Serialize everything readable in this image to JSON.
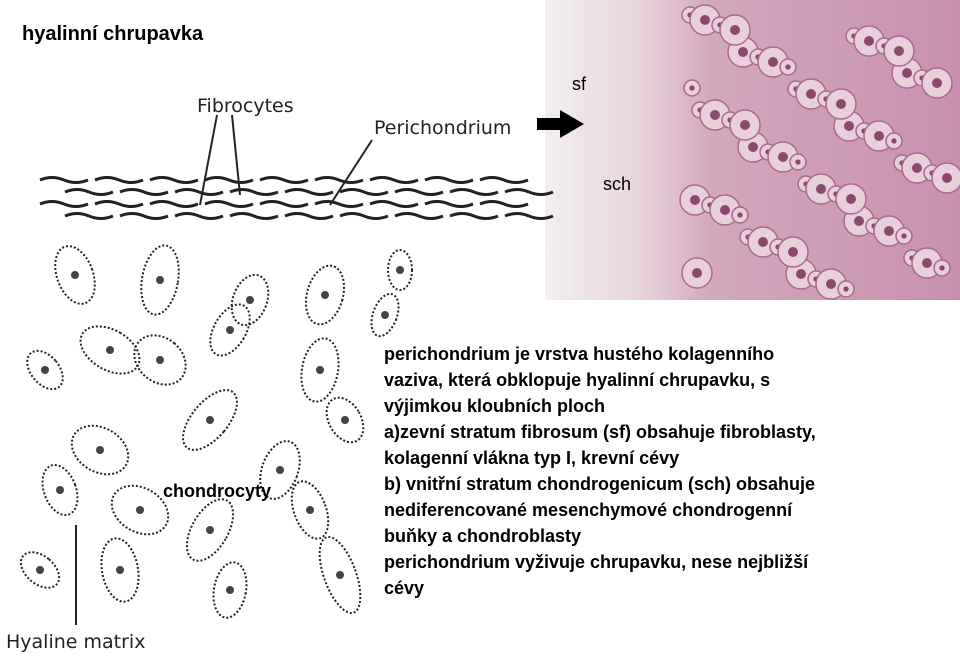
{
  "header": {
    "title": "hyalinní chrupavka"
  },
  "figure": {
    "labels": {
      "fibrocytes": "Fibrocytes",
      "perichondrium": "Perichondrium",
      "matrix": "Hyaline matrix",
      "chondrocytes": "chondrocyty"
    },
    "photo_labels": {
      "sf": "sf",
      "sch": "sch"
    }
  },
  "text": {
    "lines": [
      "perichondrium je vrstva hustého kolagenního",
      "vaziva, která obklopuje hyalinní chrupavku, s",
      "výjimkou kloubních ploch",
      "a)zevní stratum fibrosum  (sf) obsahuje fibroblasty,",
      "kolagenní vlákna typ I, krevní cévy",
      "b) vnitřní stratum chondrogenicum (sch) obsahuje",
      "nediferencované mesenchymové chondrogenní",
      "buňky a chondroblasty",
      "perichondrium vyživuje chrupavku, nese nejbližší",
      "cévy"
    ]
  }
}
